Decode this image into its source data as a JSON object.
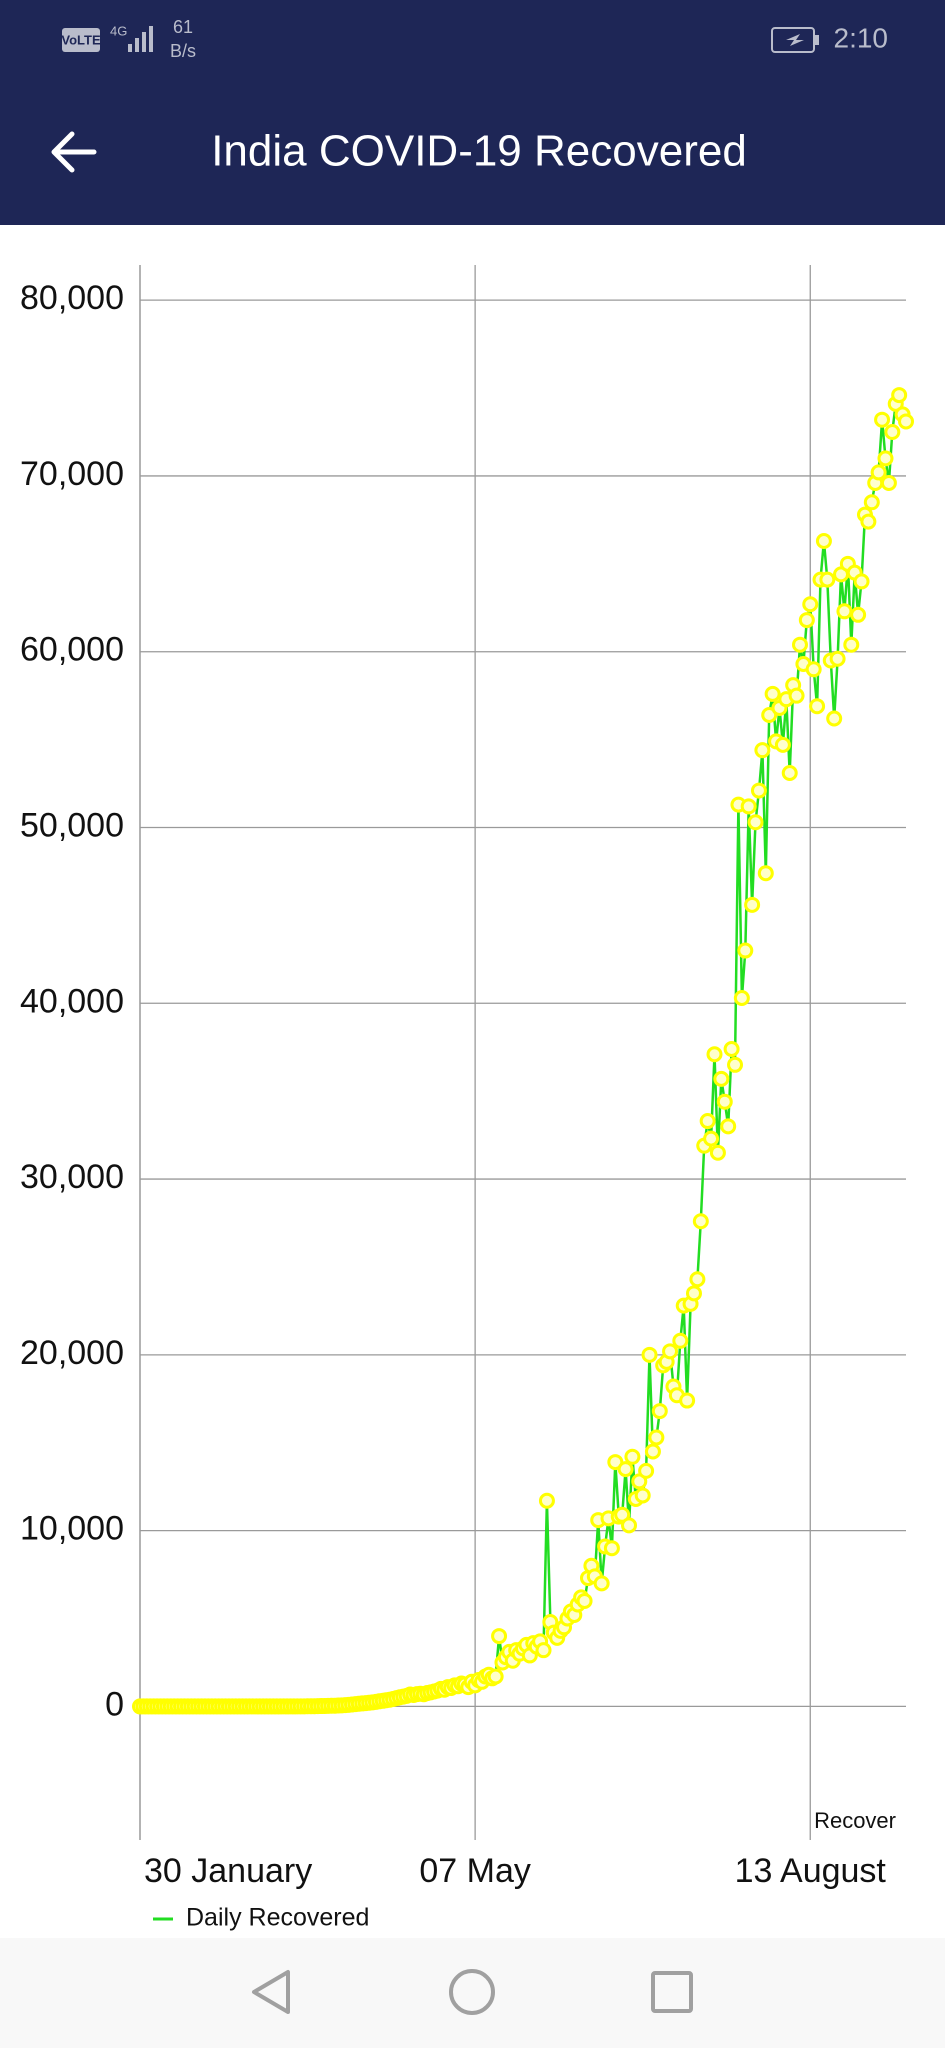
{
  "status_bar": {
    "volte": "VoLTE",
    "network": "4G",
    "speed_value": "61",
    "speed_unit": "B/s",
    "time": "2:10"
  },
  "app_bar": {
    "title": "India COVID-19 Recovered"
  },
  "chart_data": {
    "type": "line",
    "description": "Recover",
    "categories": [
      "30 January",
      null,
      null,
      null,
      null,
      null,
      null,
      null,
      null,
      null,
      null,
      null,
      null,
      null,
      null,
      null,
      null,
      null,
      null,
      null,
      null,
      null,
      null,
      null,
      null,
      null,
      null,
      null,
      null,
      null,
      null,
      null,
      null,
      null,
      null,
      null,
      null,
      null,
      null,
      null,
      null,
      null,
      null,
      null,
      null,
      null,
      null,
      null,
      null,
      null,
      null,
      null,
      null,
      null,
      null,
      null,
      null,
      null,
      null,
      null,
      null,
      null,
      null,
      null,
      null,
      null,
      null,
      null,
      null,
      null,
      null,
      null,
      null,
      null,
      null,
      null,
      null,
      null,
      null,
      null,
      null,
      null,
      null,
      null,
      null,
      null,
      null,
      null,
      null,
      null,
      null,
      null,
      null,
      null,
      null,
      null,
      null,
      null,
      "07 May",
      null,
      null,
      null,
      null,
      null,
      null,
      null,
      null,
      null,
      null,
      null,
      null,
      null,
      null,
      null,
      null,
      null,
      null,
      null,
      null,
      null,
      null,
      null,
      null,
      null,
      null,
      null,
      null,
      null,
      null,
      null,
      null,
      null,
      null,
      null,
      null,
      null,
      null,
      null,
      null,
      null,
      null,
      null,
      null,
      null,
      null,
      null,
      null,
      null,
      null,
      null,
      null,
      null,
      null,
      null,
      null,
      null,
      null,
      null,
      null,
      null,
      null,
      null,
      null,
      null,
      null,
      null,
      null,
      null,
      null,
      null,
      null,
      null,
      null,
      null,
      null,
      null,
      null,
      null,
      null,
      null,
      null,
      null,
      null,
      null,
      null,
      null,
      null,
      null,
      null,
      null,
      null,
      null,
      null,
      null,
      null,
      null,
      "13 August",
      null,
      null,
      null,
      null,
      null,
      null,
      null,
      null,
      null,
      null,
      null,
      null,
      null,
      null,
      null,
      null,
      null,
      null,
      null,
      null,
      null,
      null,
      null,
      null,
      null,
      null,
      null,
      null
    ],
    "series": [
      {
        "name": "Daily Recovered",
        "color": "#22dd22",
        "marker_color": "#ffff00",
        "values": [
          0,
          0,
          0,
          0,
          0,
          0,
          0,
          0,
          0,
          0,
          0,
          0,
          0,
          0,
          0,
          0,
          0,
          0,
          0,
          0,
          0,
          0,
          0,
          0,
          0,
          0,
          0,
          0,
          0,
          0,
          0,
          0,
          0,
          0,
          0,
          0,
          0,
          0,
          0,
          0,
          0,
          0,
          1,
          0,
          3,
          0,
          2,
          5,
          4,
          8,
          10,
          12,
          15,
          20,
          25,
          30,
          36,
          40,
          50,
          60,
          75,
          90,
          110,
          130,
          150,
          170,
          190,
          210,
          230,
          260,
          290,
          320,
          350,
          380,
          420,
          470,
          520,
          560,
          600,
          680,
          650,
          700,
          720,
          690,
          760,
          800,
          850,
          900,
          1000,
          950,
          1100,
          1050,
          1200,
          1150,
          1300,
          1250,
          1100,
          1400,
          1200,
          1500,
          1400,
          1700,
          1800,
          1600,
          1700,
          4000,
          2500,
          2800,
          3100,
          2600,
          3200,
          3000,
          3300,
          3500,
          2900,
          3600,
          3400,
          3700,
          3200,
          11700,
          4800,
          4200,
          3900,
          4300,
          4500,
          5000,
          5400,
          5200,
          5800,
          6200,
          6000,
          7300,
          8000,
          7400,
          10600,
          7000,
          9100,
          10700,
          9000,
          13900,
          10800,
          10900,
          13500,
          10300,
          14200,
          11800,
          12800,
          12000,
          13400,
          20000,
          14500,
          15300,
          16800,
          19400,
          19600,
          20200,
          18200,
          17700,
          20800,
          22800,
          17400,
          22900,
          23500,
          24300,
          27600,
          31900,
          33300,
          32300,
          37100,
          31500,
          35700,
          34400,
          33000,
          37400,
          36500,
          51300,
          40300,
          43000,
          51200,
          45600,
          50300,
          52100,
          54400,
          47400,
          56400,
          57600,
          54900,
          56800,
          54700,
          57300,
          53100,
          58100,
          57500,
          60400,
          59300,
          61800,
          62700,
          59000,
          56900,
          64100,
          66300,
          64100,
          59500,
          56200,
          59600,
          64400,
          62300,
          65000,
          60400,
          64500,
          62100,
          64000,
          67800,
          67400,
          68500,
          69600,
          70200,
          73200,
          71000,
          69600,
          72500,
          74100,
          74600,
          73500,
          73100
        ]
      }
    ],
    "ylim": [
      -7600,
      82000
    ],
    "yticks": [
      0,
      {
        "value": 10000,
        "label": "10,000"
      },
      {
        "value": 20000,
        "label": "20,000"
      },
      {
        "value": 30000,
        "label": "30,000"
      },
      {
        "value": 40000,
        "label": "40,000"
      },
      {
        "value": 50000,
        "label": "50,000"
      },
      {
        "value": 60000,
        "label": "60,000"
      },
      {
        "value": 70000,
        "label": "70,000"
      },
      {
        "value": 80000,
        "label": "80,000"
      }
    ],
    "grid": true
  }
}
